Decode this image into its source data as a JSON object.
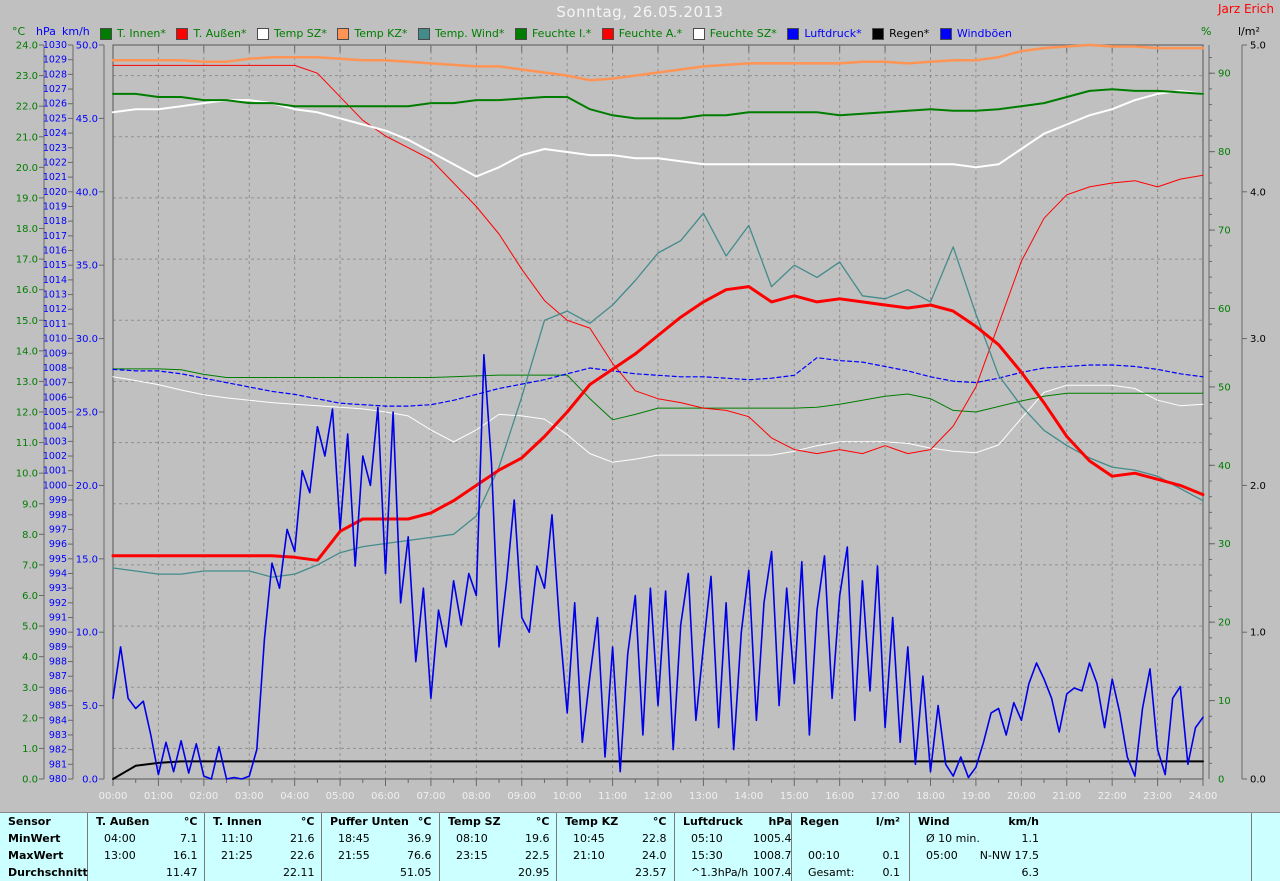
{
  "window": {
    "title": "Sonntag, 26.05.2013",
    "station": "Jarz Erich"
  },
  "legend": [
    {
      "label": "T. Innen*",
      "swatch": "#007d00",
      "text_color": "#007d00"
    },
    {
      "label": "T. Außen*",
      "swatch": "#ff0000",
      "text_color": "#007d00"
    },
    {
      "label": "Temp SZ*",
      "swatch": "#ffffff",
      "text_color": "#007d00"
    },
    {
      "label": "Temp KZ*",
      "swatch": "#ff9455",
      "text_color": "#007d00"
    },
    {
      "label": "Temp. Wind*",
      "swatch": "#448b8b",
      "text_color": "#007d00"
    },
    {
      "label": "Feuchte I.*",
      "swatch": "#007d00",
      "text_color": "#007d00"
    },
    {
      "label": "Feuchte A.*",
      "swatch": "#ff0000",
      "text_color": "#007d00"
    },
    {
      "label": "Feuchte SZ*",
      "swatch": "#ffffff",
      "text_color": "#007d00"
    },
    {
      "label": "Luftdruck*",
      "swatch": "#0000ff",
      "text_color": "#0000ff"
    },
    {
      "label": "Regen*",
      "swatch": "#000000",
      "text_color": "#000000"
    },
    {
      "label": "Windböen",
      "swatch": "#0000ff",
      "text_color": "#0000ff"
    }
  ],
  "axes": {
    "celsius": {
      "unit": "°C",
      "min": 0,
      "max": 24,
      "label_step": 1,
      "color": "#007d00"
    },
    "hpa": {
      "unit": "hPa",
      "min": 980,
      "max": 1030,
      "label_step": 1,
      "color": "#0000ff"
    },
    "kmh": {
      "unit": "km/h",
      "min": 0,
      "max": 50,
      "label_step": 5,
      "color": "#0000ff"
    },
    "percent": {
      "unit": "%",
      "min": 0,
      "max": 93.6,
      "label_step": 10,
      "label_max": 90,
      "color": "#007d00"
    },
    "lm2": {
      "unit": "l/m²",
      "min": 0,
      "max": 5,
      "label_step": 1,
      "color": "#000000"
    }
  },
  "x_axis": {
    "labels": [
      "00:00",
      "01:00",
      "02:00",
      "03:00",
      "04:00",
      "05:00",
      "06:00",
      "07:00",
      "08:00",
      "09:00",
      "10:00",
      "11:00",
      "12:00",
      "13:00",
      "14:00",
      "15:00",
      "16:00",
      "17:00",
      "18:00",
      "19:00",
      "20:00",
      "21:00",
      "22:00",
      "23:00",
      "24:00"
    ]
  },
  "chart_data": {
    "type": "line",
    "title": "Sonntag, 26.05.2013",
    "x_unit": "hour-of-day",
    "x_range": [
      0,
      24
    ],
    "grid": "dashed, hourly vertical, every 2°C horizontal",
    "legend_position": "top",
    "series": [
      {
        "name": "T. Innen",
        "axis": "celsius",
        "color": "#007d00",
        "width": 2,
        "x_step": 0.5,
        "values": [
          22.4,
          22.4,
          22.3,
          22.3,
          22.2,
          22.2,
          22.1,
          22.1,
          22.0,
          22.0,
          22.0,
          22.0,
          22.0,
          22.0,
          22.1,
          22.1,
          22.2,
          22.2,
          22.25,
          22.3,
          22.3,
          21.9,
          21.7,
          21.6,
          21.6,
          21.6,
          21.7,
          21.7,
          21.8,
          21.8,
          21.8,
          21.8,
          21.7,
          21.75,
          21.8,
          21.85,
          21.9,
          21.85,
          21.85,
          21.9,
          22.0,
          22.1,
          22.3,
          22.5,
          22.55,
          22.5,
          22.5,
          22.45,
          22.4
        ]
      },
      {
        "name": "T. Außen",
        "axis": "celsius",
        "color": "#ff0000",
        "width": 3,
        "x_step": 0.5,
        "values": [
          7.3,
          7.3,
          7.3,
          7.3,
          7.3,
          7.3,
          7.3,
          7.3,
          7.25,
          7.15,
          8.1,
          8.5,
          8.5,
          8.5,
          8.7,
          9.1,
          9.6,
          10.1,
          10.5,
          11.2,
          12.0,
          12.9,
          13.4,
          13.9,
          14.5,
          15.1,
          15.6,
          16.0,
          16.1,
          15.6,
          15.8,
          15.6,
          15.7,
          15.6,
          15.5,
          15.4,
          15.5,
          15.3,
          14.8,
          14.2,
          13.3,
          12.3,
          11.2,
          10.4,
          9.9,
          10.0,
          9.8,
          9.6,
          9.3
        ]
      },
      {
        "name": "Temp SZ",
        "axis": "celsius",
        "color": "#ffffff",
        "width": 2,
        "x_step": 0.5,
        "values": [
          21.8,
          21.9,
          21.9,
          22.0,
          22.1,
          22.2,
          22.2,
          22.1,
          21.9,
          21.8,
          21.6,
          21.4,
          21.2,
          20.9,
          20.5,
          20.1,
          19.7,
          20.0,
          20.4,
          20.6,
          20.5,
          20.4,
          20.4,
          20.3,
          20.3,
          20.2,
          20.1,
          20.1,
          20.1,
          20.1,
          20.1,
          20.1,
          20.1,
          20.1,
          20.1,
          20.1,
          20.1,
          20.1,
          20.0,
          20.1,
          20.6,
          21.1,
          21.4,
          21.7,
          21.9,
          22.2,
          22.4,
          22.5,
          22.4
        ]
      },
      {
        "name": "Temp KZ",
        "axis": "celsius",
        "color": "#ff9455",
        "width": 2.5,
        "x_step": 0.5,
        "values": [
          23.5,
          23.5,
          23.5,
          23.5,
          23.45,
          23.45,
          23.55,
          23.6,
          23.6,
          23.6,
          23.55,
          23.5,
          23.5,
          23.45,
          23.4,
          23.35,
          23.3,
          23.3,
          23.2,
          23.1,
          23.0,
          22.85,
          22.9,
          23.0,
          23.1,
          23.2,
          23.3,
          23.35,
          23.4,
          23.4,
          23.4,
          23.4,
          23.4,
          23.45,
          23.45,
          23.4,
          23.45,
          23.5,
          23.5,
          23.6,
          23.8,
          23.9,
          23.95,
          24.0,
          23.95,
          23.95,
          23.9,
          23.9,
          23.9
        ]
      },
      {
        "name": "Temp. Wind",
        "axis": "celsius",
        "color": "#448b8b",
        "width": 1.3,
        "x_step": 0.5,
        "values": [
          6.9,
          6.8,
          6.7,
          6.7,
          6.8,
          6.8,
          6.8,
          6.6,
          6.7,
          7.0,
          7.4,
          7.6,
          7.7,
          7.8,
          7.9,
          8.0,
          8.6,
          10.2,
          12.5,
          15.0,
          15.3,
          14.9,
          15.5,
          16.3,
          17.2,
          17.6,
          18.5,
          17.1,
          18.1,
          16.1,
          16.8,
          16.4,
          16.9,
          15.8,
          15.7,
          16.0,
          15.6,
          17.4,
          15.2,
          13.2,
          12.2,
          11.4,
          10.9,
          10.5,
          10.2,
          10.1,
          9.9,
          9.5,
          9.1
        ]
      },
      {
        "name": "Feuchte I.",
        "axis": "percent",
        "color": "#007d00",
        "width": 1,
        "x_step": 0.5,
        "values": [
          52.3,
          52.3,
          52.3,
          52.2,
          51.6,
          51.2,
          51.2,
          51.2,
          51.2,
          51.2,
          51.2,
          51.2,
          51.2,
          51.2,
          51.2,
          51.3,
          51.4,
          51.5,
          51.5,
          51.5,
          51.5,
          48.5,
          45.8,
          46.5,
          47.3,
          47.3,
          47.3,
          47.3,
          47.3,
          47.3,
          47.3,
          47.4,
          47.8,
          48.3,
          48.8,
          49.1,
          48.5,
          47.0,
          46.8,
          47.5,
          48.2,
          48.8,
          49.2,
          49.2,
          49.2,
          49.2,
          49.2,
          49.2,
          49.2
        ]
      },
      {
        "name": "Feuchte A.",
        "axis": "percent",
        "color": "#ff0000",
        "width": 1,
        "x_step": 0.5,
        "values": [
          91,
          91,
          91,
          91,
          91,
          91,
          91,
          91,
          91,
          90,
          87,
          84,
          82,
          80.5,
          79,
          76,
          73,
          69.5,
          65,
          61,
          58.5,
          57.5,
          53,
          49.5,
          48.5,
          48,
          47.3,
          47,
          46.2,
          43.5,
          42,
          41.5,
          42,
          41.5,
          42.5,
          41.5,
          42,
          45,
          50,
          58,
          66,
          71.5,
          74.5,
          75.5,
          76,
          76.3,
          75.5,
          76.5,
          77
        ]
      },
      {
        "name": "Feuchte SZ",
        "axis": "percent",
        "color": "#ffffff",
        "width": 1,
        "x_step": 0.5,
        "values": [
          51.3,
          50.8,
          50.3,
          49.6,
          49.0,
          48.6,
          48.3,
          48.0,
          47.8,
          47.6,
          47.4,
          47.2,
          46.8,
          46.3,
          44.5,
          43.0,
          44.5,
          46.5,
          46.3,
          45.9,
          43.9,
          41.5,
          40.4,
          40.8,
          41.3,
          41.3,
          41.3,
          41.3,
          41.3,
          41.3,
          41.8,
          42.5,
          43.0,
          43.0,
          43.0,
          42.8,
          42.2,
          41.8,
          41.6,
          42.6,
          46.0,
          49.3,
          50.2,
          50.2,
          50.2,
          49.8,
          48.3,
          47.6,
          47.8
        ]
      },
      {
        "name": "Luftdruck",
        "axis": "hpa",
        "color": "#0000ff",
        "width": 1.2,
        "dash": "4 3",
        "x_step": 0.5,
        "values": [
          1007.9,
          1007.8,
          1007.8,
          1007.6,
          1007.3,
          1007.0,
          1006.7,
          1006.4,
          1006.2,
          1005.9,
          1005.6,
          1005.5,
          1005.4,
          1005.4,
          1005.5,
          1005.8,
          1006.2,
          1006.6,
          1006.9,
          1007.2,
          1007.6,
          1008.0,
          1007.8,
          1007.6,
          1007.5,
          1007.4,
          1007.4,
          1007.3,
          1007.2,
          1007.3,
          1007.5,
          1008.7,
          1008.5,
          1008.4,
          1008.1,
          1007.8,
          1007.4,
          1007.1,
          1007.0,
          1007.3,
          1007.7,
          1008.0,
          1008.1,
          1008.2,
          1008.2,
          1008.1,
          1007.9,
          1007.6,
          1007.4
        ]
      },
      {
        "name": "Regen",
        "axis": "lm2",
        "color": "#000000",
        "width": 2,
        "x_step": 0.5,
        "values": [
          0,
          0.09,
          0.11,
          0.12,
          0.12,
          0.12,
          0.12,
          0.12,
          0.12,
          0.12,
          0.12,
          0.12,
          0.12,
          0.12,
          0.12,
          0.12,
          0.12,
          0.12,
          0.12,
          0.12,
          0.12,
          0.12,
          0.12,
          0.12,
          0.12,
          0.12,
          0.12,
          0.12,
          0.12,
          0.12,
          0.12,
          0.12,
          0.12,
          0.12,
          0.12,
          0.12,
          0.12,
          0.12,
          0.12,
          0.12,
          0.12,
          0.12,
          0.12,
          0.12,
          0.12,
          0.12,
          0.12,
          0.12,
          0.12
        ]
      },
      {
        "name": "Windböen",
        "axis": "kmh",
        "color": "#0000e8",
        "width": 1.6,
        "x_step": 0.16667,
        "values": [
          5.5,
          9.0,
          5.5,
          4.8,
          5.3,
          3.0,
          0.3,
          2.5,
          0.5,
          2.6,
          0.4,
          2.4,
          0.2,
          0.0,
          2.2,
          0.0,
          0.1,
          0.0,
          0.2,
          2.0,
          9.5,
          14.7,
          13.0,
          17.0,
          15.5,
          21.0,
          19.5,
          24.0,
          22.0,
          25.2,
          17.0,
          23.5,
          14.5,
          22.0,
          20.0,
          25.3,
          14.0,
          25.0,
          12.0,
          16.5,
          8.0,
          13.0,
          5.5,
          11.5,
          9.0,
          13.5,
          10.5,
          14.0,
          12.5,
          28.9,
          21.5,
          9.0,
          13.5,
          19.0,
          11.0,
          10.0,
          14.5,
          13.0,
          18.0,
          10.5,
          4.5,
          12.0,
          2.5,
          7.0,
          11.0,
          1.5,
          9.0,
          0.5,
          8.5,
          12.5,
          3.0,
          13.0,
          5.0,
          12.8,
          2.0,
          10.5,
          14.0,
          4.0,
          9.0,
          13.8,
          3.5,
          12.0,
          2.0,
          10.0,
          14.2,
          4.0,
          12.0,
          15.5,
          5.0,
          13.0,
          6.5,
          14.8,
          3.0,
          11.5,
          15.2,
          5.5,
          12.5,
          15.8,
          4.0,
          13.5,
          6.0,
          14.5,
          3.5,
          11.0,
          2.5,
          9.0,
          1.0,
          7.0,
          0.5,
          5.0,
          1.0,
          0.2,
          1.5,
          0.1,
          0.8,
          2.5,
          4.5,
          4.8,
          3.0,
          5.2,
          4.0,
          6.5,
          7.9,
          6.8,
          5.5,
          3.2,
          5.8,
          6.2,
          6.0,
          7.9,
          6.5,
          3.5,
          6.8,
          4.5,
          1.5,
          0.2,
          4.8,
          7.5,
          2.0,
          0.3,
          5.5,
          6.3,
          1.0,
          3.5,
          4.2
        ]
      }
    ]
  },
  "table": {
    "corner": "Sensor",
    "row_labels": [
      "MinWert",
      "MaxWert",
      "Durchschnitt"
    ],
    "columns": [
      {
        "name": "T. Außen",
        "unit": "°C",
        "rows": [
          [
            "04:00",
            "7.1"
          ],
          [
            "13:00",
            "16.1"
          ],
          [
            "",
            "11.47"
          ]
        ]
      },
      {
        "name": "T. Innen",
        "unit": "°C",
        "rows": [
          [
            "11:10",
            "21.6"
          ],
          [
            "21:25",
            "22.6"
          ],
          [
            "",
            "22.11"
          ]
        ]
      },
      {
        "name": "Puffer Unten",
        "unit": "°C",
        "rows": [
          [
            "18:45",
            "36.9"
          ],
          [
            "21:55",
            "76.6"
          ],
          [
            "",
            "51.05"
          ]
        ]
      },
      {
        "name": "Temp SZ",
        "unit": "°C",
        "rows": [
          [
            "08:10",
            "19.6"
          ],
          [
            "23:15",
            "22.5"
          ],
          [
            "",
            "20.95"
          ]
        ]
      },
      {
        "name": "Temp KZ",
        "unit": "°C",
        "rows": [
          [
            "10:45",
            "22.8"
          ],
          [
            "21:10",
            "24.0"
          ],
          [
            "",
            "23.57"
          ]
        ]
      },
      {
        "name": "Luftdruck",
        "unit": "hPa",
        "rows": [
          [
            "05:10",
            "1005.4"
          ],
          [
            "15:30",
            "1008.7"
          ],
          [
            "^1.3hPa/h",
            "1007.4"
          ]
        ]
      },
      {
        "name": "Regen",
        "unit": "l/m²",
        "rows": [
          [
            "",
            ""
          ],
          [
            "00:10",
            "0.1"
          ],
          [
            "Gesamt:",
            "0.1"
          ]
        ]
      },
      {
        "name": "Wind",
        "unit": "km/h",
        "rows": [
          [
            "Ø 10 min.",
            "1.1"
          ],
          [
            "05:00",
            "N-NW 17.5"
          ],
          [
            "",
            "6.3"
          ]
        ]
      }
    ],
    "bg": "#ccffff"
  },
  "colors": {
    "background": "#c0c0c0",
    "grid": "#8f8f8f",
    "frame": "#686868",
    "x_labels": "#f0f0f0",
    "title": "#f5f5f5",
    "station": "#ff0000",
    "table_bg": "#ccffff"
  }
}
